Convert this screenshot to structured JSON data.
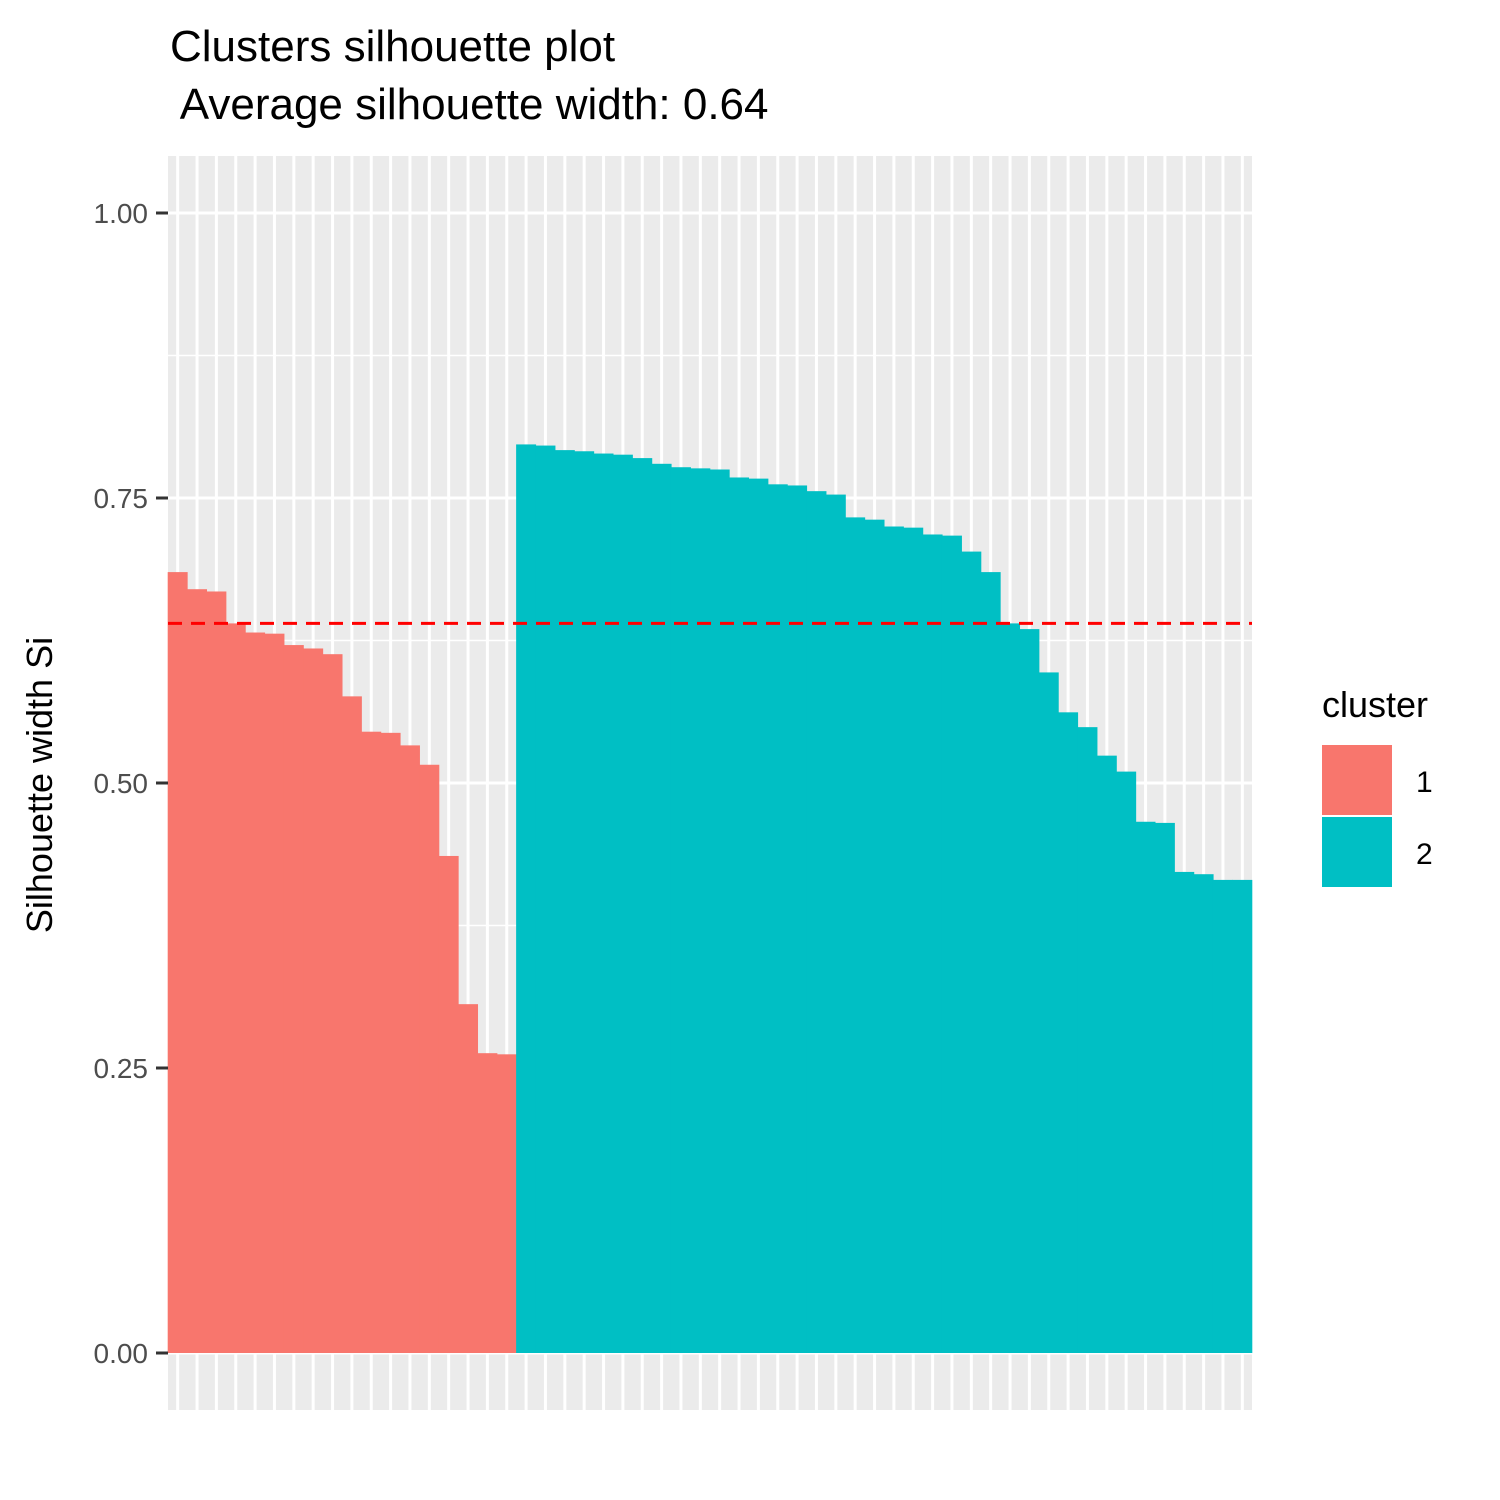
{
  "title_line1": "Clusters silhouette plot",
  "title_line2": " Average silhouette width: 0.64",
  "chart_data": {
    "type": "bar",
    "title": "Clusters silhouette plot\n Average silhouette width: 0.64",
    "xlabel": "",
    "ylabel": "Silhouette width Si",
    "ylim": [
      -0.05,
      1.05
    ],
    "yticks": [
      "0.00",
      "0.25",
      "0.50",
      "0.75",
      "1.00"
    ],
    "grid": true,
    "legend_position": "right",
    "legend_title": "cluster",
    "average_line": {
      "value": 0.64,
      "color": "#ff0000",
      "style": "dashed"
    },
    "series": [
      {
        "name": "1",
        "color": "#F8766D",
        "values": [
          0.685,
          0.67,
          0.668,
          0.64,
          0.632,
          0.631,
          0.621,
          0.618,
          0.613,
          0.576,
          0.545,
          0.544,
          0.533,
          0.516,
          0.436,
          0.306,
          0.263,
          0.262
        ]
      },
      {
        "name": "2",
        "color": "#00BFC4",
        "values": [
          0.797,
          0.796,
          0.792,
          0.791,
          0.789,
          0.788,
          0.785,
          0.78,
          0.777,
          0.776,
          0.775,
          0.768,
          0.767,
          0.762,
          0.761,
          0.756,
          0.753,
          0.733,
          0.731,
          0.725,
          0.724,
          0.718,
          0.717,
          0.703,
          0.685,
          0.64,
          0.635,
          0.597,
          0.562,
          0.549,
          0.524,
          0.51,
          0.466,
          0.465,
          0.422,
          0.42,
          0.415,
          0.415
        ]
      }
    ]
  }
}
